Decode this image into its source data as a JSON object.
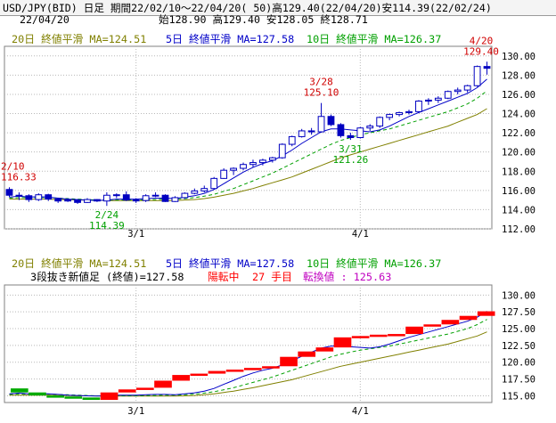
{
  "header": {
    "line1": "USD/JPY(BID) 日足 期間22/02/10～22/04/20( 50)高129.40(22/04/20)安114.39(22/02/24)",
    "date": "22/04/20",
    "ohlc": "始128.90 高129.40 安128.05 終128.71"
  },
  "colors": {
    "ma20": "#808000",
    "ma5": "#0000c8",
    "ma10": "#00a000",
    "candle_up": "#0000c0",
    "candle_down": "#0000c0",
    "renko_up": "#ff0000",
    "renko_down": "#00aa00",
    "annotation_high": "#d00000",
    "annotation_low": "#00a000",
    "info_magenta": "#c000c0"
  },
  "upper_legend": {
    "ma20": "20日 終値平滑 MA=124.51",
    "ma5": "5日 終値平滑 MA=127.58",
    "ma10": "10日 終値平滑 MA=126.37"
  },
  "lower_legend": {
    "ma20": "20日 終値平滑 MA=124.51",
    "ma5": "5日 終値平滑 MA=127.58",
    "ma10": "10日 終値平滑 MA=126.37"
  },
  "lower_info": {
    "new_price": "3段抜き新値足 (終値)=127.58",
    "state": "陽転中",
    "count": "27 手目",
    "pivot": "転換値 : 125.63"
  },
  "annotations": {
    "a1_date": "2/10",
    "a1_value": "116.33",
    "a2_date": "2/24",
    "a2_value": "114.39",
    "a3_date": "3/28",
    "a3_value": "125.10",
    "a4_date": "3/31",
    "a4_value": "121.26",
    "a5_date": "4/20",
    "a5_value": "129.40"
  },
  "chart_data": [
    {
      "type": "candlestick",
      "xlabel": "",
      "ylabel": "",
      "x_ticks": [
        "3/1",
        "4/1"
      ],
      "y_ticks": [
        "112.00",
        "114.00",
        "116.00",
        "118.00",
        "120.00",
        "122.00",
        "124.00",
        "126.00",
        "128.00",
        "130.00"
      ],
      "ylim": [
        112,
        131
      ],
      "grid": true,
      "x": [
        "02/10",
        "02/11",
        "02/14",
        "02/15",
        "02/16",
        "02/17",
        "02/18",
        "02/21",
        "02/22",
        "02/23",
        "02/24",
        "02/25",
        "02/28",
        "03/01",
        "03/02",
        "03/03",
        "03/04",
        "03/07",
        "03/08",
        "03/09",
        "03/10",
        "03/11",
        "03/14",
        "03/15",
        "03/16",
        "03/17",
        "03/18",
        "03/21",
        "03/22",
        "03/23",
        "03/24",
        "03/25",
        "03/28",
        "03/29",
        "03/30",
        "03/31",
        "04/01",
        "04/04",
        "04/05",
        "04/06",
        "04/07",
        "04/08",
        "04/11",
        "04/12",
        "04/13",
        "04/14",
        "04/15",
        "04/18",
        "04/19",
        "04/20"
      ],
      "ohlc": [
        [
          116.1,
          116.33,
          115.3,
          115.5
        ],
        [
          115.5,
          115.8,
          115.0,
          115.45
        ],
        [
          115.45,
          115.6,
          114.8,
          115.05
        ],
        [
          115.05,
          115.7,
          114.9,
          115.55
        ],
        [
          115.55,
          115.65,
          114.9,
          115.1
        ],
        [
          115.1,
          115.25,
          114.7,
          114.9
        ],
        [
          114.9,
          115.2,
          114.8,
          115.0
        ],
        [
          115.0,
          115.1,
          114.6,
          114.75
        ],
        [
          114.75,
          115.2,
          114.7,
          115.05
        ],
        [
          115.05,
          115.1,
          114.8,
          114.9
        ],
        [
          114.9,
          115.8,
          114.39,
          115.5
        ],
        [
          115.5,
          115.7,
          115.2,
          115.55
        ],
        [
          115.55,
          115.9,
          114.9,
          115.0
        ],
        [
          115.0,
          115.2,
          114.7,
          114.95
        ],
        [
          114.95,
          115.6,
          114.8,
          115.45
        ],
        [
          115.45,
          115.8,
          115.3,
          115.5
        ],
        [
          115.5,
          115.6,
          114.8,
          114.85
        ],
        [
          114.85,
          115.4,
          114.8,
          115.25
        ],
        [
          115.25,
          115.8,
          115.1,
          115.7
        ],
        [
          115.7,
          116.2,
          115.6,
          115.95
        ],
        [
          115.95,
          116.5,
          115.8,
          116.2
        ],
        [
          116.2,
          117.4,
          116.1,
          117.25
        ],
        [
          117.25,
          118.3,
          117.2,
          118.1
        ],
        [
          118.1,
          118.4,
          117.6,
          118.3
        ],
        [
          118.3,
          118.9,
          118.1,
          118.7
        ],
        [
          118.7,
          119.2,
          118.4,
          118.9
        ],
        [
          118.9,
          119.3,
          118.6,
          119.15
        ],
        [
          119.15,
          119.5,
          118.9,
          119.4
        ],
        [
          119.4,
          120.9,
          119.3,
          120.8
        ],
        [
          120.8,
          121.7,
          120.6,
          121.6
        ],
        [
          121.6,
          122.4,
          121.5,
          122.2
        ],
        [
          122.2,
          122.5,
          121.8,
          122.1
        ],
        [
          122.1,
          125.1,
          122.0,
          123.7
        ],
        [
          123.7,
          123.9,
          122.7,
          122.85
        ],
        [
          122.85,
          123.0,
          121.5,
          121.7
        ],
        [
          121.7,
          122.0,
          121.26,
          121.5
        ],
        [
          121.5,
          122.6,
          121.4,
          122.5
        ],
        [
          122.5,
          122.9,
          122.2,
          122.7
        ],
        [
          122.7,
          123.7,
          122.5,
          123.6
        ],
        [
          123.6,
          124.0,
          123.3,
          123.9
        ],
        [
          123.9,
          124.2,
          123.7,
          124.1
        ],
        [
          124.1,
          124.4,
          123.9,
          124.2
        ],
        [
          124.2,
          125.4,
          124.1,
          125.3
        ],
        [
          125.3,
          125.6,
          124.9,
          125.4
        ],
        [
          125.4,
          125.8,
          125.1,
          125.6
        ],
        [
          125.6,
          126.4,
          125.5,
          126.3
        ],
        [
          126.3,
          126.7,
          126.0,
          126.45
        ],
        [
          126.45,
          127.0,
          126.2,
          126.9
        ],
        [
          126.9,
          129.0,
          126.8,
          128.9
        ],
        [
          128.9,
          129.4,
          128.05,
          128.71
        ]
      ],
      "series": [
        {
          "name": "5日 終値平滑",
          "values": [
            115.3,
            115.4,
            115.3,
            115.35,
            115.3,
            115.2,
            115.1,
            115.05,
            115.0,
            114.95,
            115.0,
            115.1,
            115.1,
            115.1,
            115.15,
            115.2,
            115.2,
            115.15,
            115.3,
            115.45,
            115.7,
            116.1,
            116.7,
            117.3,
            117.9,
            118.4,
            118.8,
            119.1,
            119.6,
            120.2,
            120.9,
            121.5,
            122.1,
            122.4,
            122.4,
            122.3,
            122.2,
            122.1,
            122.3,
            122.7,
            123.2,
            123.7,
            124.1,
            124.5,
            124.9,
            125.3,
            125.7,
            126.1,
            126.7,
            127.58
          ]
        },
        {
          "name": "10日 終値平滑",
          "values": [
            115.2,
            115.25,
            115.25,
            115.25,
            115.25,
            115.2,
            115.15,
            115.1,
            115.05,
            115.0,
            115.0,
            115.0,
            115.0,
            115.0,
            115.05,
            115.05,
            115.1,
            115.1,
            115.15,
            115.25,
            115.4,
            115.6,
            115.9,
            116.2,
            116.6,
            117.0,
            117.4,
            117.8,
            118.3,
            118.8,
            119.3,
            119.8,
            120.3,
            120.8,
            121.2,
            121.5,
            121.8,
            122.0,
            122.2,
            122.4,
            122.7,
            123.0,
            123.3,
            123.6,
            123.9,
            124.2,
            124.6,
            125.0,
            125.6,
            126.37
          ]
        },
        {
          "name": "20日 終値平滑",
          "values": [
            115.1,
            115.1,
            115.1,
            115.1,
            115.1,
            115.05,
            115.05,
            115.0,
            115.0,
            115.0,
            114.95,
            114.95,
            114.95,
            114.95,
            114.95,
            114.95,
            114.95,
            114.95,
            115.0,
            115.05,
            115.15,
            115.3,
            115.5,
            115.7,
            115.95,
            116.2,
            116.5,
            116.8,
            117.1,
            117.4,
            117.8,
            118.2,
            118.6,
            119.0,
            119.4,
            119.7,
            120.0,
            120.3,
            120.6,
            120.9,
            121.2,
            121.5,
            121.8,
            122.1,
            122.4,
            122.7,
            123.1,
            123.5,
            123.9,
            124.51
          ]
        }
      ]
    },
    {
      "type": "renko_new_price_3line",
      "xlabel": "",
      "ylabel": "",
      "x_ticks": [
        "3/1",
        "4/1"
      ],
      "y_ticks": [
        "115.00",
        "117.50",
        "120.00",
        "122.50",
        "125.00",
        "127.50",
        "130.00"
      ],
      "ylim": [
        114,
        131.5
      ],
      "grid": true,
      "lines": [
        {
          "from": 116.1,
          "to": 115.5
        },
        {
          "from": 115.5,
          "to": 115.05
        },
        {
          "from": 115.05,
          "to": 114.9
        },
        {
          "from": 114.9,
          "to": 114.75
        },
        {
          "from": 114.75,
          "to": 114.39
        },
        {
          "from": 114.39,
          "to": 115.5
        },
        {
          "from": 115.5,
          "to": 115.95
        },
        {
          "from": 115.95,
          "to": 116.2
        },
        {
          "from": 116.2,
          "to": 117.25
        },
        {
          "from": 117.25,
          "to": 118.1
        },
        {
          "from": 118.1,
          "to": 118.3
        },
        {
          "from": 118.3,
          "to": 118.7
        },
        {
          "from": 118.7,
          "to": 118.9
        },
        {
          "from": 118.9,
          "to": 119.15
        },
        {
          "from": 119.15,
          "to": 119.4
        },
        {
          "from": 119.4,
          "to": 120.8
        },
        {
          "from": 120.8,
          "to": 121.6
        },
        {
          "from": 121.6,
          "to": 122.2
        },
        {
          "from": 122.2,
          "to": 123.7
        },
        {
          "from": 123.7,
          "to": 123.9
        },
        {
          "from": 123.9,
          "to": 124.1
        },
        {
          "from": 124.1,
          "to": 124.2
        },
        {
          "from": 124.2,
          "to": 125.3
        },
        {
          "from": 125.3,
          "to": 125.63
        },
        {
          "from": 125.63,
          "to": 126.3
        },
        {
          "from": 126.3,
          "to": 126.9
        },
        {
          "from": 126.9,
          "to": 127.58
        }
      ],
      "series": [
        {
          "name": "5日 終値平滑",
          "ref": 0
        },
        {
          "name": "10日 終値平滑",
          "ref": 1
        },
        {
          "name": "20日 終値平滑",
          "ref": 2
        }
      ]
    }
  ]
}
